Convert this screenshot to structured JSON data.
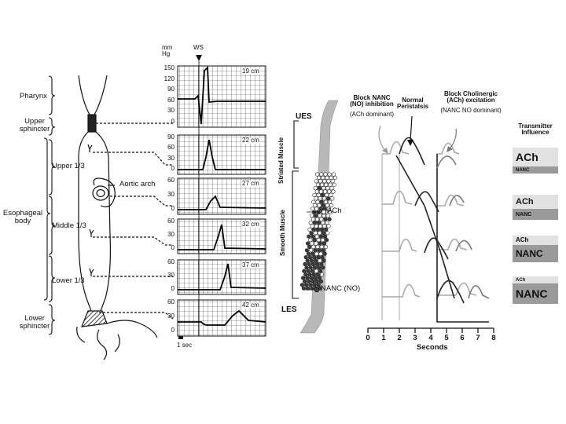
{
  "anatomy": {
    "pharynx": "Pharynx",
    "upper_sphincter": [
      "Upper",
      "sphincter"
    ],
    "esophageal_body": [
      "Esophageal",
      "body"
    ],
    "upper_third": "Upper 1/3",
    "middle_third": "Middle 1/3",
    "lower_third": "Lower 1/3",
    "lower_sphincter": [
      "Lower",
      "sphincter"
    ],
    "aortic_arch": "Aortic arch"
  },
  "manometry": {
    "unit": [
      "mm",
      "Hg"
    ],
    "ws_label": "WS",
    "time_scale": "1 sec",
    "traces": [
      {
        "label": "19 cm",
        "ticks": [
          "150",
          "120",
          "90",
          "60",
          "30",
          "0"
        ]
      },
      {
        "label": "22 cm",
        "ticks": [
          "90",
          "60",
          "30",
          "0"
        ]
      },
      {
        "label": "27 cm",
        "ticks": [
          "60",
          "30",
          "0"
        ]
      },
      {
        "label": "32 cm",
        "ticks": [
          "60",
          "30",
          "0"
        ]
      },
      {
        "label": "37 cm",
        "ticks": [
          "60",
          "30",
          "0"
        ]
      },
      {
        "label": "42 cm",
        "ticks": [
          "60",
          "30",
          "0"
        ]
      }
    ]
  },
  "muscle": {
    "ues": "UES",
    "les": "LES",
    "striated": "Striated Muscle",
    "smooth": "Smooth Muscle",
    "ach": "ACh",
    "nanc": "NANC (NO)"
  },
  "peristalsis": {
    "block_nanc": [
      "Block NANC",
      "(NO) inhibition",
      "(ACh dominant)"
    ],
    "normal": [
      "Normal",
      "Peristalsis"
    ],
    "block_chol": [
      "Block Cholinergic",
      "(ACh) excitation",
      "(NANC NO dominant)"
    ],
    "xlabel": "Seconds",
    "x_ticks": [
      "0",
      "1",
      "2",
      "3",
      "4",
      "5",
      "6",
      "7",
      "8"
    ]
  },
  "transmitter": {
    "title": [
      "Transmitter",
      "Influence"
    ],
    "bars": [
      {
        "top": "ACh",
        "bottom": "NANC"
      },
      {
        "top": "ACh",
        "bottom": "NANC"
      },
      {
        "top": "ACh",
        "bottom": "NANC"
      },
      {
        "top": "ACh",
        "bottom": "NANC"
      }
    ]
  }
}
